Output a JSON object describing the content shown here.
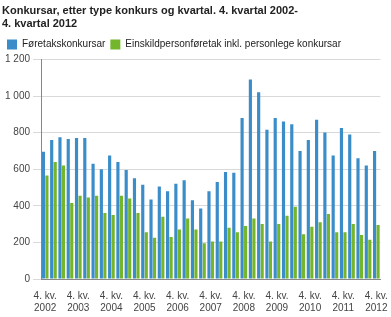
{
  "chart_data": {
    "type": "bar",
    "title": [
      "Konkursar, etter type konkurs og kvartal. 4. kvartal 2002-",
      "4. kvartal 2012"
    ],
    "categories": [
      "4. kv. 2002",
      null,
      null,
      null,
      "4. kv. 2003",
      null,
      null,
      null,
      "4. kv. 2004",
      null,
      null,
      null,
      "4. kv. 2005",
      null,
      null,
      null,
      "4. kv. 2006",
      null,
      null,
      null,
      "4. kv. 2007",
      null,
      null,
      null,
      "4. kv. 2008",
      null,
      null,
      null,
      "4. kv. 2009",
      null,
      null,
      null,
      "4. kv. 2010",
      null,
      null,
      null,
      "4. kv. 2011",
      null,
      null,
      null,
      "4. kv. 2012"
    ],
    "series": [
      {
        "name": "Føretakskonkursar",
        "color": "#3a8dc8",
        "values": [
          695,
          760,
          775,
          765,
          770,
          770,
          630,
          600,
          675,
          640,
          595,
          550,
          515,
          435,
          505,
          480,
          520,
          540,
          430,
          385,
          480,
          530,
          585,
          580,
          880,
          1090,
          1020,
          815,
          880,
          860,
          845,
          700,
          760,
          870,
          800,
          675,
          825,
          790,
          660,
          620,
          700
        ]
      },
      {
        "name": "Einskildpersonføretak inkl. personlege konkursar",
        "color": "#74b52c",
        "values": [
          565,
          640,
          620,
          415,
          455,
          445,
          455,
          360,
          350,
          455,
          440,
          360,
          255,
          225,
          340,
          230,
          270,
          330,
          270,
          195,
          205,
          205,
          280,
          255,
          290,
          330,
          300,
          205,
          300,
          345,
          395,
          245,
          285,
          310,
          355,
          255,
          255,
          300,
          240,
          215,
          295
        ]
      }
    ],
    "ylim": [
      0,
      1200
    ],
    "yticks": [
      0,
      200,
      400,
      600,
      800,
      {
        "value": 1000,
        "label": "1 000"
      },
      {
        "value": 1200,
        "label": "1 200"
      }
    ],
    "grid": true,
    "legend": "top"
  }
}
